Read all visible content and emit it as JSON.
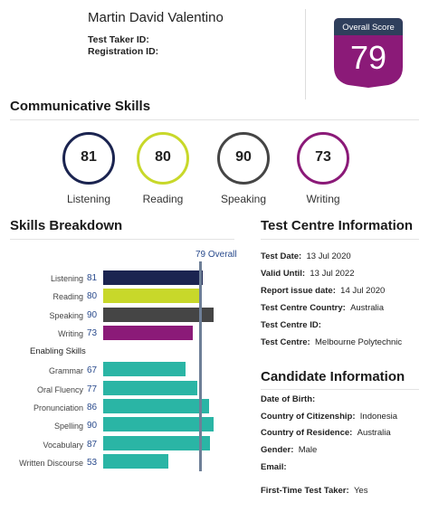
{
  "candidate": {
    "name": "Martin David Valentino",
    "test_taker_id_label": "Test Taker ID:",
    "registration_id_label": "Registration ID:"
  },
  "overall": {
    "label": "Overall Score",
    "score": "79",
    "marker_text": "79 Overall",
    "marker_value": 79,
    "colors": {
      "badge_top": "#2f3f5c",
      "badge_body": "#8b1a78"
    }
  },
  "communicative": {
    "title": "Communicative Skills",
    "skills": [
      {
        "name": "Listening",
        "score": "81",
        "color": "#1b2450"
      },
      {
        "name": "Reading",
        "score": "80",
        "color": "#c8d82a"
      },
      {
        "name": "Speaking",
        "score": "90",
        "color": "#454545"
      },
      {
        "name": "Writing",
        "score": "73",
        "color": "#8b1a78"
      }
    ]
  },
  "breakdown": {
    "title": "Skills Breakdown",
    "enabling_title": "Enabling Skills",
    "scale_max": 90,
    "communicative": [
      {
        "name": "Listening",
        "value": 81,
        "color": "#1b2450"
      },
      {
        "name": "Reading",
        "value": 80,
        "color": "#c8d82a"
      },
      {
        "name": "Speaking",
        "value": 90,
        "color": "#454545"
      },
      {
        "name": "Writing",
        "value": 73,
        "color": "#8b1a78"
      }
    ],
    "enabling": [
      {
        "name": "Grammar",
        "value": 67,
        "color": "#2ab5a5"
      },
      {
        "name": "Oral Fluency",
        "value": 77,
        "color": "#2ab5a5"
      },
      {
        "name": "Pronunciation",
        "value": 86,
        "color": "#2ab5a5"
      },
      {
        "name": "Spelling",
        "value": 90,
        "color": "#2ab5a5"
      },
      {
        "name": "Vocabulary",
        "value": 87,
        "color": "#2ab5a5"
      },
      {
        "name": "Written Discourse",
        "value": 53,
        "color": "#2ab5a5"
      }
    ]
  },
  "test_centre": {
    "title": "Test Centre Information",
    "rows": [
      {
        "label": "Test Date:",
        "value": "13 Jul 2020"
      },
      {
        "label": "Valid Until:",
        "value": "13 Jul 2022"
      },
      {
        "label": "Report issue date:",
        "value": "14 Jul 2020"
      },
      {
        "label": "Test Centre Country:",
        "value": "Australia"
      },
      {
        "label": "Test Centre ID:",
        "value": ""
      },
      {
        "label": "Test Centre:",
        "value": "Melbourne Polytechnic"
      }
    ]
  },
  "candidate_info": {
    "title": "Candidate Information",
    "rows": [
      {
        "label": "Date of Birth:",
        "value": ""
      },
      {
        "label": "Country of Citizenship:",
        "value": "Indonesia"
      },
      {
        "label": "Country of Residence:",
        "value": "Australia"
      },
      {
        "label": "Gender:",
        "value": "Male"
      },
      {
        "label": "Email:",
        "value": ""
      },
      {
        "label": "First-Time Test Taker:",
        "value": "Yes"
      }
    ]
  }
}
